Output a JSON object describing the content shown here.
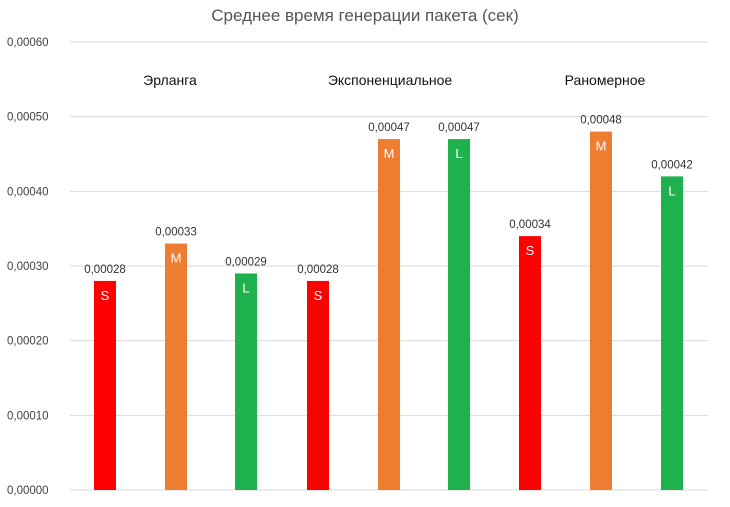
{
  "chart_data": {
    "type": "bar",
    "title": "Среднее время генерации пакета (сек)",
    "ylim": [
      0,
      0.0006
    ],
    "yticks": [
      "0,00000",
      "0,00010",
      "0,00020",
      "0,00030",
      "0,00040",
      "0,00050",
      "0,00060"
    ],
    "grid": true,
    "groups": [
      {
        "label": "Эрланга",
        "bars": [
          {
            "name": "S",
            "value": 0.00028,
            "value_label": "0,00028",
            "color": "#ff0000"
          },
          {
            "name": "M",
            "value": 0.00033,
            "value_label": "0,00033",
            "color": "#ed7d31"
          },
          {
            "name": "L",
            "value": 0.00029,
            "value_label": "0,00029",
            "color": "#1fb14d"
          }
        ]
      },
      {
        "label": "Экспоненциальное",
        "bars": [
          {
            "name": "S",
            "value": 0.00028,
            "value_label": "0,00028",
            "color": "#ff0000"
          },
          {
            "name": "M",
            "value": 0.00047,
            "value_label": "0,00047",
            "color": "#ed7d31"
          },
          {
            "name": "L",
            "value": 0.00047,
            "value_label": "0,00047",
            "color": "#1fb14d"
          }
        ]
      },
      {
        "label": "Раномерное",
        "bars": [
          {
            "name": "S",
            "value": 0.00034,
            "value_label": "0,00034",
            "color": "#ff0000"
          },
          {
            "name": "M",
            "value": 0.00048,
            "value_label": "0,00048",
            "color": "#ed7d31"
          },
          {
            "name": "L",
            "value": 0.00042,
            "value_label": "0,00042",
            "color": "#1fb14d"
          }
        ]
      }
    ]
  }
}
